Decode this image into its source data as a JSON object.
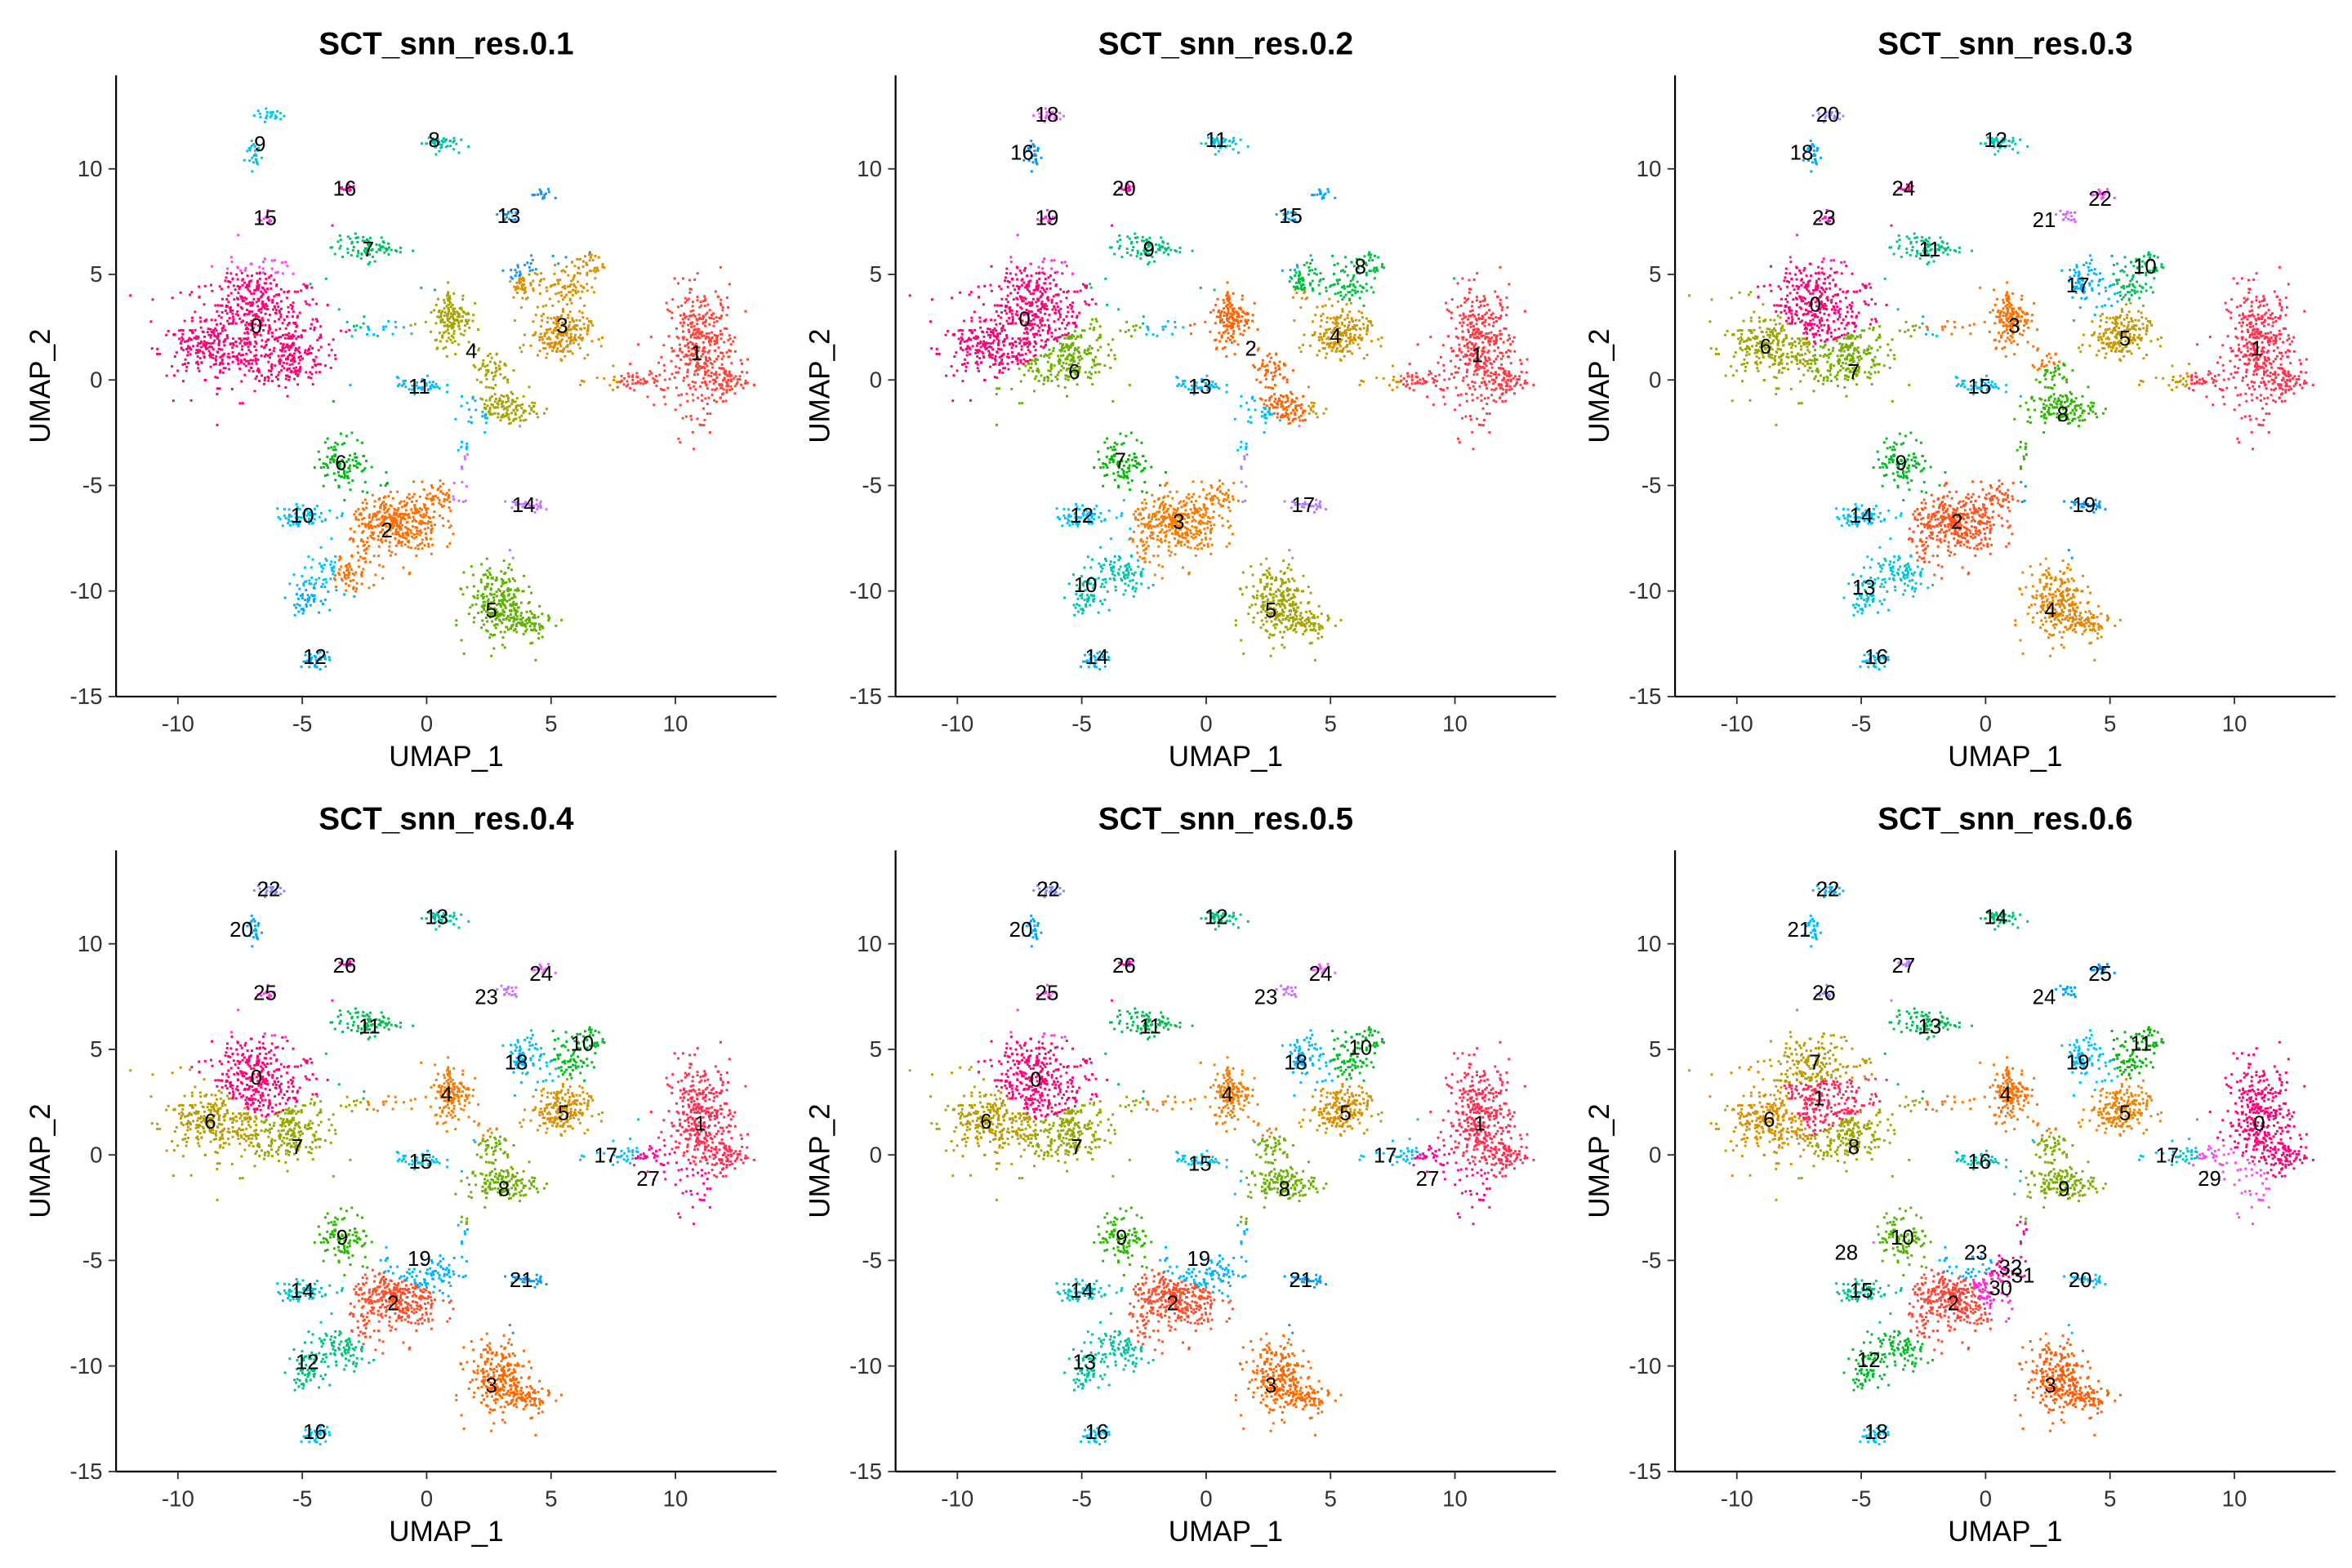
{
  "chart_data": [
    {
      "type": "scatter",
      "title": "SCT_snn_res.0.1",
      "xlabel": "UMAP_1",
      "ylabel": "UMAP_2",
      "clusters": [
        [
          -6.85,
          2.57
        ],
        [
          10.85,
          1.3
        ],
        [
          -1.6,
          -7.1
        ],
        [
          5.45,
          2.6
        ],
        [
          1.8,
          1.4
        ],
        [
          2.6,
          -10.9
        ],
        [
          -3.45,
          -3.9
        ],
        [
          -2.35,
          6.2
        ],
        [
          0.3,
          11.4
        ],
        [
          -6.7,
          11.2
        ],
        [
          -5,
          -6.4
        ],
        [
          -0.3,
          -0.3
        ],
        [
          -4.5,
          -13.1
        ],
        [
          3.3,
          7.8
        ],
        [
          3.9,
          -5.9
        ],
        [
          -6.5,
          7.7
        ],
        [
          -3.3,
          9.1
        ]
      ]
    },
    {
      "type": "scatter",
      "title": "SCT_snn_res.0.2",
      "xlabel": "UMAP_1",
      "ylabel": "UMAP_2",
      "clusters": [
        [
          -7.3,
          2.9
        ],
        [
          10.9,
          1.2
        ],
        [
          1.8,
          1.5
        ],
        [
          -1.1,
          -6.7
        ],
        [
          5.2,
          2.1
        ],
        [
          2.6,
          -10.9
        ],
        [
          -5.3,
          0.4
        ],
        [
          -3.45,
          -3.8
        ],
        [
          6.2,
          5.4
        ],
        [
          -2.3,
          6.2
        ],
        [
          -4.85,
          -9.7
        ],
        [
          0.4,
          11.4
        ],
        [
          -5,
          -6.4
        ],
        [
          -0.25,
          -0.3
        ],
        [
          -4.4,
          -13.1
        ],
        [
          3.4,
          7.8
        ],
        [
          -7.4,
          10.8
        ],
        [
          3.9,
          -5.9
        ],
        [
          -6.4,
          12.6
        ],
        [
          -6.4,
          7.7
        ],
        [
          -3.3,
          9.1
        ]
      ]
    },
    {
      "type": "scatter",
      "title": "SCT_snn_res.0.3",
      "xlabel": "UMAP_1",
      "ylabel": "UMAP_2",
      "clusters": [
        [
          -6.85,
          3.6
        ],
        [
          10.9,
          1.5
        ],
        [
          -1.15,
          -6.7
        ],
        [
          1.15,
          2.6
        ],
        [
          2.6,
          -10.9
        ],
        [
          5.6,
          2
        ],
        [
          -8.85,
          1.6
        ],
        [
          -5.3,
          0.4
        ],
        [
          3.1,
          -1.6
        ],
        [
          -3.4,
          -3.9
        ],
        [
          6.4,
          5.4
        ],
        [
          -2.25,
          6.2
        ],
        [
          0.4,
          11.4
        ],
        [
          -4.9,
          -9.8
        ],
        [
          -5,
          -6.4
        ],
        [
          -0.25,
          -0.3
        ],
        [
          -4.4,
          -13.1
        ],
        [
          3.7,
          4.5
        ],
        [
          -7.4,
          10.8
        ],
        [
          3.95,
          -5.9
        ],
        [
          -6.35,
          12.6
        ],
        [
          2.35,
          7.6
        ],
        [
          4.6,
          8.6
        ],
        [
          -6.5,
          7.7
        ],
        [
          -3.3,
          9.1
        ]
      ]
    },
    {
      "type": "scatter",
      "title": "SCT_snn_res.0.4",
      "xlabel": "UMAP_1",
      "ylabel": "UMAP_2",
      "clusters": [
        [
          -6.85,
          3.7
        ],
        [
          11,
          1.5
        ],
        [
          -1.35,
          -7
        ],
        [
          2.6,
          -10.9
        ],
        [
          0.8,
          2.9
        ],
        [
          5.5,
          2
        ],
        [
          -8.7,
          1.6
        ],
        [
          -5.2,
          0.4
        ],
        [
          3.1,
          -1.6
        ],
        [
          -3.4,
          -3.9
        ],
        [
          6.25,
          5.3
        ],
        [
          -2.3,
          6.1
        ],
        [
          -4.8,
          -9.8
        ],
        [
          0.4,
          11.3
        ],
        [
          -5,
          -6.4
        ],
        [
          -0.25,
          -0.3
        ],
        [
          -4.5,
          -13.1
        ],
        [
          7.2,
          0
        ],
        [
          3.6,
          4.4
        ],
        [
          -0.3,
          -4.9
        ],
        [
          -7.45,
          10.7
        ],
        [
          3.8,
          -5.9
        ],
        [
          -6.35,
          12.6
        ],
        [
          2.4,
          7.5
        ],
        [
          4.6,
          8.6
        ],
        [
          -6.5,
          7.7
        ],
        [
          -3.3,
          9
        ],
        [
          8.9,
          -1.1
        ]
      ]
    },
    {
      "type": "scatter",
      "title": "SCT_snn_res.0.5",
      "xlabel": "UMAP_1",
      "ylabel": "UMAP_2",
      "clusters": [
        [
          -6.85,
          3.6
        ],
        [
          11,
          1.5
        ],
        [
          -1.35,
          -7
        ],
        [
          2.6,
          -10.9
        ],
        [
          0.85,
          2.9
        ],
        [
          5.6,
          2
        ],
        [
          -8.85,
          1.6
        ],
        [
          -5.2,
          0.4
        ],
        [
          3.15,
          -1.6
        ],
        [
          -3.4,
          -3.9
        ],
        [
          6.2,
          5.1
        ],
        [
          -2.25,
          6.1
        ],
        [
          0.4,
          11.3
        ],
        [
          -4.9,
          -9.8
        ],
        [
          -5,
          -6.4
        ],
        [
          -0.25,
          -0.4
        ],
        [
          -4.4,
          -13.1
        ],
        [
          7.2,
          0
        ],
        [
          3.6,
          4.4
        ],
        [
          -0.3,
          -4.9
        ],
        [
          -7.45,
          10.7
        ],
        [
          3.8,
          -5.9
        ],
        [
          -6.35,
          12.6
        ],
        [
          2.4,
          7.5
        ],
        [
          4.6,
          8.6
        ],
        [
          -6.4,
          7.7
        ],
        [
          -3.3,
          9
        ],
        [
          8.9,
          -1.1
        ]
      ]
    },
    {
      "type": "scatter",
      "title": "SCT_snn_res.0.6",
      "xlabel": "UMAP_1",
      "ylabel": "UMAP_2",
      "clusters": [
        [
          11,
          1.5
        ],
        [
          -6.7,
          2.7
        ],
        [
          -1.3,
          -7
        ],
        [
          2.6,
          -10.9
        ],
        [
          0.8,
          2.9
        ],
        [
          5.6,
          2
        ],
        [
          -8.7,
          1.7
        ],
        [
          -6.85,
          4.4
        ],
        [
          -5.3,
          0.4
        ],
        [
          3.15,
          -1.6
        ],
        [
          -3.35,
          -3.9
        ],
        [
          6.25,
          5.3
        ],
        [
          -4.7,
          -9.7
        ],
        [
          -2.25,
          6.1
        ],
        [
          0.4,
          11.3
        ],
        [
          -5,
          -6.4
        ],
        [
          -0.25,
          -0.3
        ],
        [
          7.3,
          0
        ],
        [
          -4.4,
          -13.1
        ],
        [
          3.7,
          4.4
        ],
        [
          3.8,
          -5.9
        ],
        [
          -7.5,
          10.7
        ],
        [
          -6.35,
          12.6
        ],
        [
          -0.4,
          -4.6
        ],
        [
          2.35,
          7.5
        ],
        [
          4.6,
          8.6
        ],
        [
          -6.5,
          7.7
        ],
        [
          -3.3,
          9
        ],
        [
          -5.6,
          -4.6
        ],
        [
          9,
          -1.1
        ],
        [
          0.6,
          -6.3
        ],
        [
          1.5,
          -5.7
        ],
        [
          1,
          -5.3
        ]
      ]
    }
  ],
  "axes": {
    "xlim": [
      -12.5,
      14
    ],
    "ylim": [
      -15,
      14.5
    ],
    "xticks": [
      -10,
      -5,
      0,
      5,
      10
    ],
    "yticks": [
      10,
      5,
      0,
      -5,
      -10,
      -15
    ]
  },
  "palette": {
    "type": "ggplot-hue",
    "chroma": 100,
    "luminance": 65,
    "hue_start": 15
  },
  "point_clouds": [
    [
      -7,
      2.5,
      1.9,
      1.8,
      900
    ],
    [
      -9,
      1.5,
      1.2,
      0.8,
      250
    ],
    [
      -5.5,
      1,
      1,
      0.8,
      250
    ],
    [
      -7,
      4.5,
      0.7,
      0.8,
      150
    ],
    [
      11,
      1.5,
      0.9,
      2,
      700
    ],
    [
      8.5,
      0,
      1.2,
      0.4,
      120
    ],
    [
      12,
      0,
      0.5,
      0.6,
      100
    ],
    [
      5.3,
      2.2,
      0.8,
      0.7,
      350
    ],
    [
      5.5,
      4.5,
      0.7,
      0.9,
      150
    ],
    [
      6.5,
      5.5,
      0.4,
      0.5,
      60
    ],
    [
      4,
      5,
      0.5,
      0.6,
      60
    ],
    [
      3.7,
      4.6,
      0.3,
      0.5,
      60
    ],
    [
      1,
      3,
      0.5,
      0.9,
      280
    ],
    [
      2.5,
      0.5,
      0.6,
      0.7,
      100
    ],
    [
      3,
      -1.3,
      0.9,
      0.5,
      250
    ],
    [
      -2.5,
      6.3,
      0.9,
      0.4,
      150
    ],
    [
      0.4,
      11.3,
      0.5,
      0.25,
      80
    ],
    [
      -7,
      10.8,
      0.25,
      0.5,
      50
    ],
    [
      -6.3,
      12.6,
      0.4,
      0.2,
      40
    ],
    [
      -3.3,
      9.1,
      0.3,
      0.15,
      25
    ],
    [
      -6.5,
      7.7,
      0.25,
      0.15,
      25
    ],
    [
      3.2,
      7.8,
      0.3,
      0.2,
      30
    ],
    [
      4.6,
      8.8,
      0.3,
      0.2,
      30
    ],
    [
      -0.3,
      -0.2,
      0.6,
      0.25,
      80
    ],
    [
      -3.4,
      -3.8,
      0.7,
      0.8,
      180
    ],
    [
      -5,
      -6.4,
      0.7,
      0.35,
      120
    ],
    [
      -1.3,
      -6.8,
      1.2,
      1,
      700
    ],
    [
      -3.5,
      -9,
      1,
      0.7,
      180
    ],
    [
      -4.9,
      -10.2,
      0.4,
      0.5,
      100
    ],
    [
      0.5,
      -5.5,
      0.6,
      0.5,
      100
    ],
    [
      2.8,
      -10.5,
      0.8,
      1.2,
      450
    ],
    [
      4,
      -11.5,
      0.6,
      0.5,
      150
    ],
    [
      3.9,
      -5.9,
      0.5,
      0.2,
      50
    ],
    [
      -4.5,
      -13.2,
      0.4,
      0.25,
      70
    ],
    [
      -2,
      2.5,
      1.5,
      0.3,
      60
    ],
    [
      1.5,
      -3.5,
      0.2,
      0.4,
      20
    ]
  ]
}
